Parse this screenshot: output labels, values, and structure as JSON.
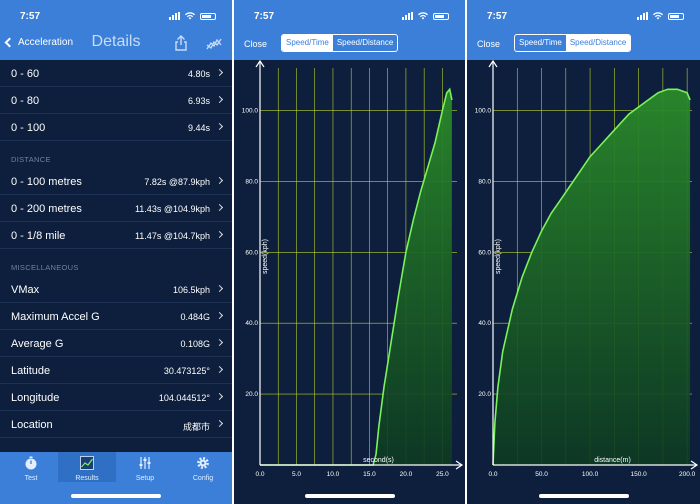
{
  "status": {
    "time": "7:57"
  },
  "details": {
    "back_label": "Acceleration",
    "title": "Details",
    "speed_rows": [
      {
        "label": "0 - 60",
        "value": "4.80s"
      },
      {
        "label": "0 - 80",
        "value": "6.93s"
      },
      {
        "label": "0 - 100",
        "value": "9.44s"
      }
    ],
    "distance_header": "DISTANCE",
    "distance_rows": [
      {
        "label": "0 - 100 metres",
        "value": "7.82s @87.9kph"
      },
      {
        "label": "0 - 200 metres",
        "value": "11.43s @104.9kph"
      },
      {
        "label": "0 - 1/8 mile",
        "value": "11.47s @104.7kph"
      }
    ],
    "misc_header": "MISCELLANEOUS",
    "misc_rows": [
      {
        "label": "VMax",
        "value": "106.5kph"
      },
      {
        "label": "Maximum Accel G",
        "value": "0.484G"
      },
      {
        "label": "Average G",
        "value": "0.108G"
      },
      {
        "label": "Latitude",
        "value": "30.473125°"
      },
      {
        "label": "Longitude",
        "value": "104.044512°"
      },
      {
        "label": "Location",
        "value": "成都市"
      }
    ]
  },
  "tabbar": {
    "tabs": [
      {
        "label": "Test",
        "icon": "stopwatch-icon"
      },
      {
        "label": "Results",
        "icon": "results-chart-icon"
      },
      {
        "label": "Setup",
        "icon": "sliders-icon"
      },
      {
        "label": "Config",
        "icon": "gear-icon"
      }
    ],
    "active": "Results"
  },
  "graph_view": {
    "close_label": "Close",
    "segments": [
      "Speed/Time",
      "Speed/Distance"
    ]
  },
  "colors": {
    "accent": "#3b7fd9",
    "background": "#0d1f3c",
    "grid": "#b8cf2a",
    "curve": "#7cf25a",
    "fill": "#2a8a2a"
  },
  "chart_data": [
    {
      "type": "area",
      "selected_segment": "Speed/Time",
      "xlabel": "second(s)",
      "ylabel": "speed(kph)",
      "xlim": [
        0,
        27
      ],
      "ylim": [
        0,
        112
      ],
      "x_ticks": [
        "0.0",
        "5.0",
        "10.0",
        "15.0",
        "20.0",
        "25.0"
      ],
      "y_ticks": [
        "20.0",
        "40.0",
        "60.0",
        "80.0",
        "100.0"
      ],
      "grid": true,
      "x": [
        0,
        15.5,
        15.9,
        16.3,
        17,
        18,
        19,
        20,
        21,
        22,
        23,
        24,
        25,
        25.6,
        26,
        26.3
      ],
      "y": [
        0,
        0,
        3,
        11,
        22,
        35,
        48,
        60,
        69,
        77,
        84,
        91,
        100,
        105,
        106,
        103
      ]
    },
    {
      "type": "area",
      "selected_segment": "Speed/Distance",
      "xlabel": "distance(m)",
      "ylabel": "speed(kph)",
      "xlim": [
        0,
        205
      ],
      "ylim": [
        0,
        112
      ],
      "x_ticks": [
        "0.0",
        "50.0",
        "100.0",
        "150.0",
        "200.0"
      ],
      "y_ticks": [
        "20.0",
        "40.0",
        "60.0",
        "80.0",
        "100.0"
      ],
      "grid": true,
      "x": [
        0,
        2,
        5,
        10,
        20,
        30,
        40,
        50,
        60,
        70,
        80,
        90,
        100,
        110,
        120,
        130,
        140,
        150,
        160,
        170,
        180,
        190,
        200,
        203
      ],
      "y": [
        0,
        12,
        22,
        32,
        44,
        53,
        60,
        66,
        71,
        75,
        79,
        83,
        87,
        90,
        93,
        96,
        99,
        101,
        103,
        105,
        106,
        106,
        105,
        103
      ]
    }
  ]
}
